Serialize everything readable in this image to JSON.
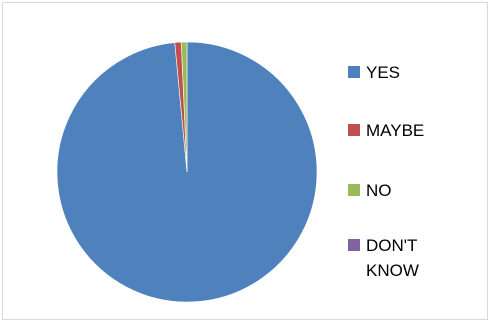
{
  "chart_data": {
    "type": "pie",
    "title": "",
    "categories": [
      "YES",
      "MAYBE",
      "NO",
      "DON'T KNOW"
    ],
    "values": [
      98.5,
      0.8,
      0.7,
      0.0
    ],
    "colors": [
      "#4f81bd",
      "#c0504d",
      "#9bbb59",
      "#8064a2"
    ],
    "legend_position": "right"
  }
}
